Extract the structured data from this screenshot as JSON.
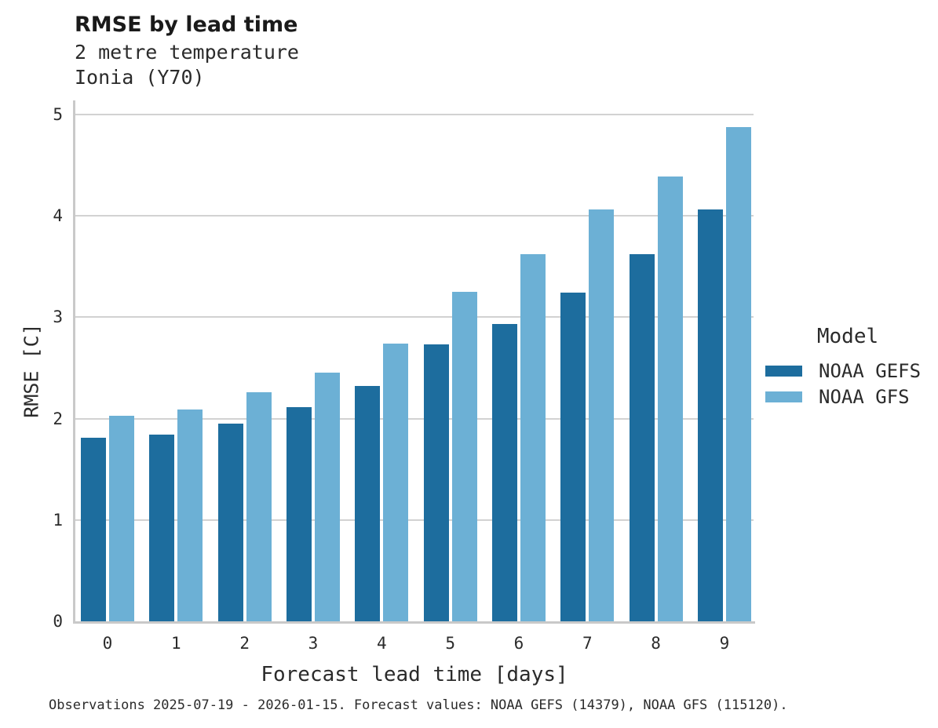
{
  "header": {
    "title": "RMSE by lead time",
    "subtitle1": "2 metre temperature",
    "subtitle2": "Ionia (Y70)"
  },
  "chart_data": {
    "type": "bar",
    "title": "RMSE by lead time",
    "subtitle": [
      "2 metre temperature",
      "Ionia (Y70)"
    ],
    "categories": [
      "0",
      "1",
      "2",
      "3",
      "4",
      "5",
      "6",
      "7",
      "8",
      "9"
    ],
    "series": [
      {
        "name": "NOAA GEFS",
        "color": "#1d6d9e",
        "values": [
          1.81,
          1.84,
          1.95,
          2.11,
          2.32,
          2.73,
          2.93,
          3.24,
          3.62,
          4.06
        ]
      },
      {
        "name": "NOAA GFS",
        "color": "#6cb0d5",
        "values": [
          2.03,
          2.09,
          2.26,
          2.45,
          2.74,
          3.25,
          3.62,
          4.06,
          4.39,
          4.88
        ]
      }
    ],
    "xlabel": "Forecast lead time [days]",
    "ylabel": "RMSE [C]",
    "ylim": [
      0,
      5
    ],
    "yticks": [
      0,
      1,
      2,
      3,
      4,
      5
    ],
    "grid": true,
    "legend_title": "Model",
    "legend_position": "right",
    "colors": {
      "noaa_gefs": "#1d6d9e",
      "noaa_gfs": "#6cb0d5",
      "gridline": "#d2d2d2",
      "spine": "#c9c9c9",
      "text": "#2b2b2b"
    }
  },
  "footer": {
    "caption": "Observations 2025-07-19 - 2026-01-15. Forecast values: NOAA GEFS (14379), NOAA GFS (115120)."
  }
}
